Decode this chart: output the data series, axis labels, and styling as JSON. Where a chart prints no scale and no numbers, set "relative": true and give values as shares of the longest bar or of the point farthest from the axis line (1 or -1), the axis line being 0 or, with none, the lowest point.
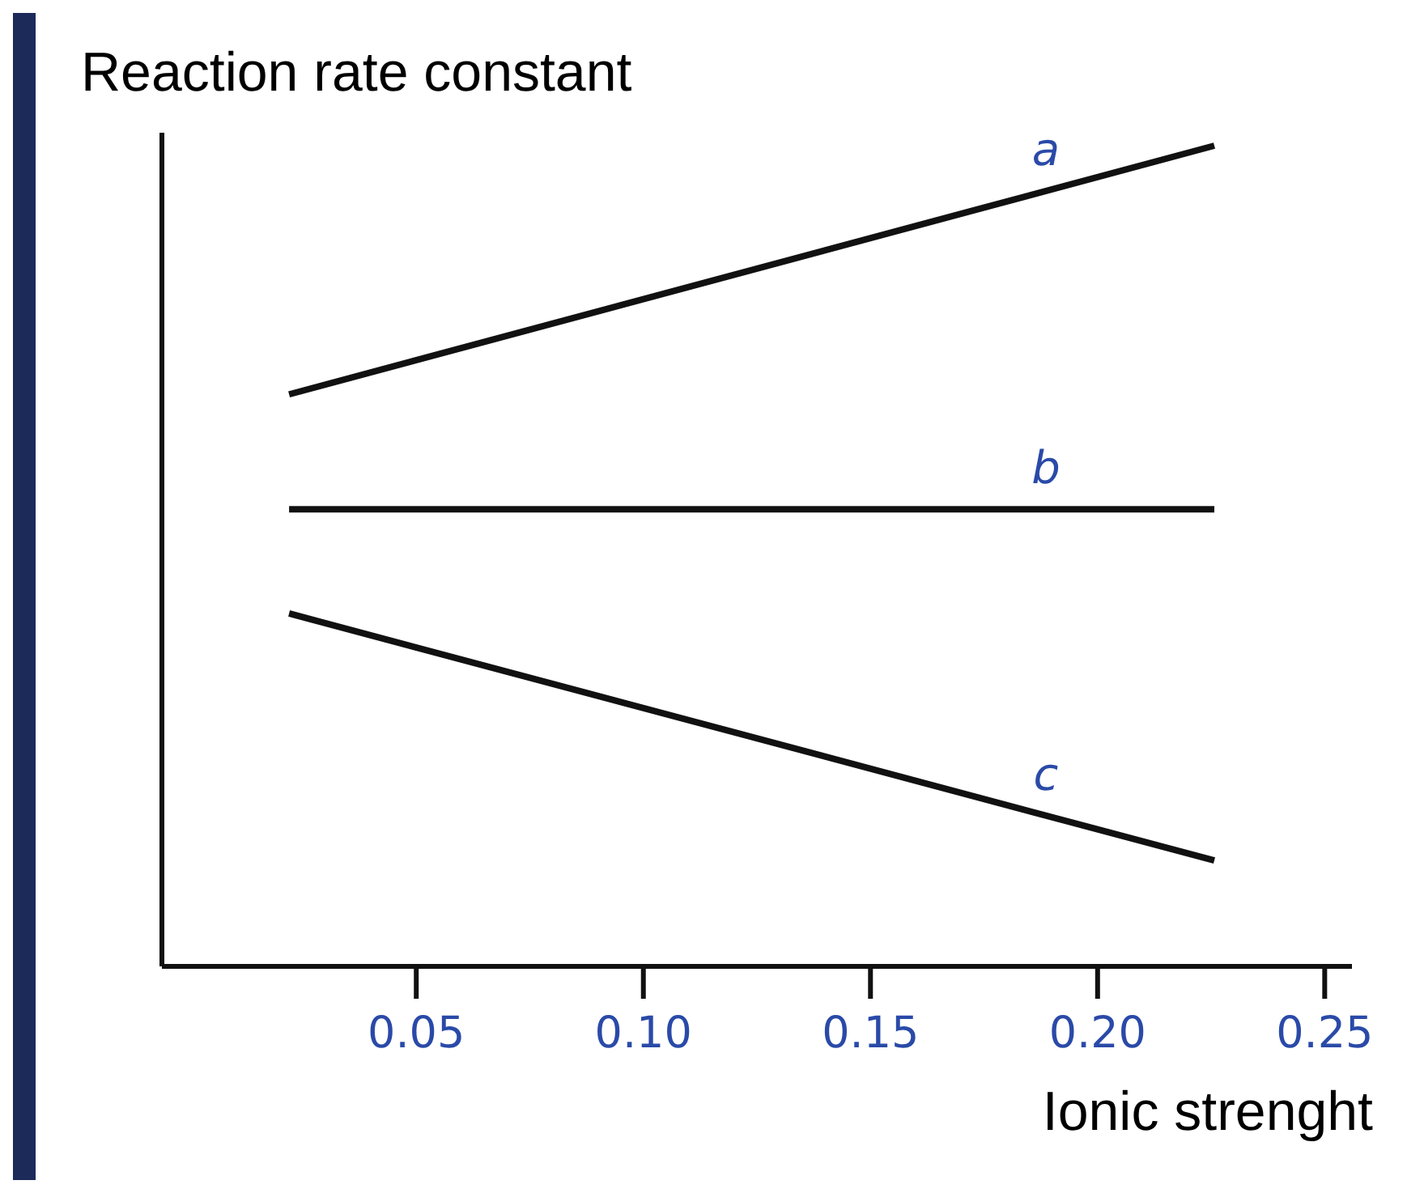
{
  "chart_data": {
    "type": "line",
    "relative": true,
    "ylabel": "Reaction rate constant",
    "xlabel": "Ionic strenght",
    "xlim": [
      -0.006,
      0.256
    ],
    "x": [
      0.022,
      0.2257
    ],
    "xticks": [
      0.05,
      {
        "value": 0.1,
        "label": "0.10"
      },
      0.15,
      {
        "value": 0.2,
        "label": "0.20"
      },
      0.25
    ],
    "series": [
      {
        "name": "a",
        "color": "#111111",
        "values": [
          0.697,
          1
        ]
      },
      {
        "name": "b",
        "color": "#111111",
        "values": [
          0.557,
          0.557
        ]
      },
      {
        "name": "c",
        "color": "#111111",
        "values": [
          0.43,
          0.129
        ]
      }
    ],
    "grid": false,
    "marker": "none",
    "line_style": "solid"
  }
}
